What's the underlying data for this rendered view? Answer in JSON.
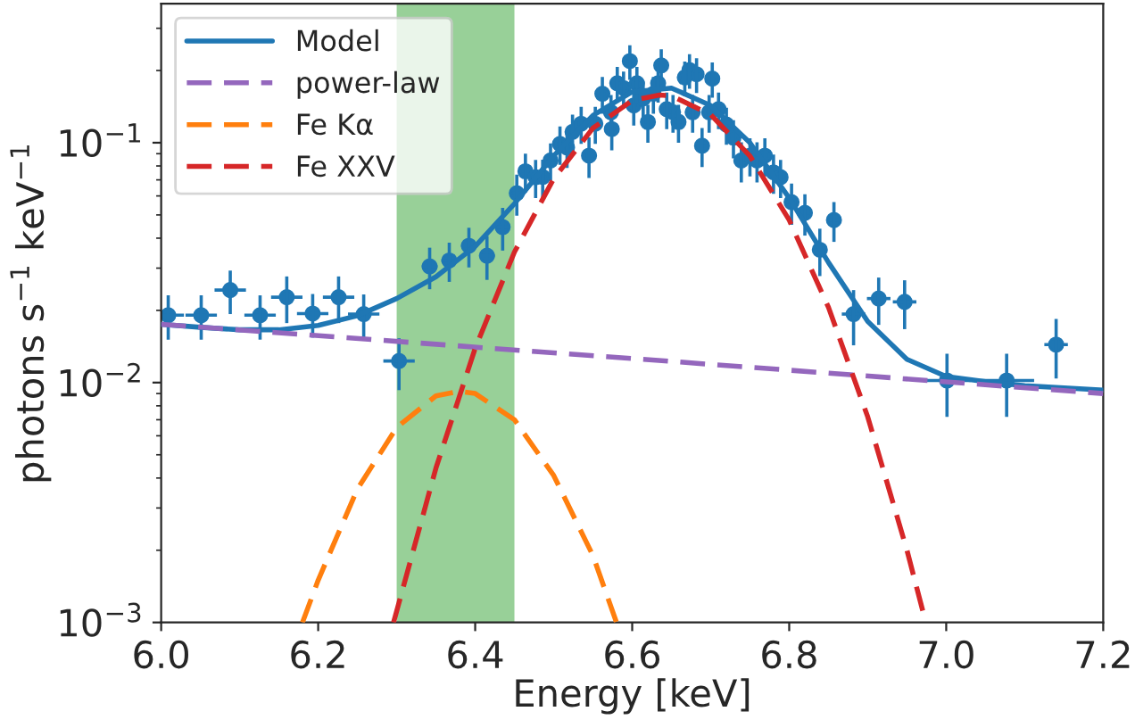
{
  "chart_data": {
    "type": "line",
    "xlabel": "Energy [keV]",
    "ylabel": "photons s$^{−1}$ keV$^{−1}$",
    "log": "y",
    "xlim": [
      6.0,
      7.2
    ],
    "ylim": [
      0.001,
      0.38
    ],
    "xticks": [
      {
        "value": 6.0,
        "label": "6.0"
      },
      {
        "value": 6.2,
        "label": "6.2"
      },
      {
        "value": 6.4,
        "label": "6.4"
      },
      {
        "value": 6.6,
        "label": "6.6"
      },
      {
        "value": 6.8,
        "label": "6.8"
      },
      {
        "value": 7.0,
        "label": "7.0"
      },
      {
        "value": 7.2,
        "label": "7.2"
      }
    ],
    "yticks": [
      {
        "value": 0.001,
        "label": "10$^{−3}$"
      },
      {
        "value": 0.01,
        "label": "10$^{−2}$"
      },
      {
        "value": 0.1,
        "label": "10$^{−1}$"
      }
    ],
    "grid": false,
    "legend": "top left",
    "bands": [
      {
        "axis": "x",
        "from": 6.3,
        "to": 6.45,
        "color": "#98d098"
      }
    ],
    "series": [
      {
        "type": "scatter",
        "color": "#1f77b4",
        "marker": "circle",
        "x": [
          6.009,
          6.051,
          6.088,
          6.126,
          6.16,
          6.193,
          6.226,
          6.258,
          6.303,
          6.342,
          6.367,
          6.392,
          6.415,
          6.435,
          6.453,
          6.464,
          6.477,
          6.486,
          6.496,
          6.508,
          6.517,
          6.524,
          6.535,
          6.545,
          6.553,
          6.562,
          6.573,
          6.574,
          6.581,
          6.589,
          6.597,
          6.602,
          6.606,
          6.614,
          6.62,
          6.627,
          6.633,
          6.637,
          6.644,
          6.652,
          6.659,
          6.667,
          6.673,
          6.677,
          6.682,
          6.689,
          6.698,
          6.702,
          6.71,
          6.72,
          6.729,
          6.739,
          6.75,
          6.759,
          6.769,
          6.78,
          6.789,
          6.803,
          6.82,
          6.839,
          6.857,
          6.882,
          6.914,
          6.947,
          7.001,
          7.077,
          7.14
        ],
        "values": [
          0.0191,
          0.0191,
          0.0243,
          0.0191,
          0.0227,
          0.0194,
          0.0227,
          0.0193,
          0.0123,
          0.0305,
          0.0323,
          0.0372,
          0.0338,
          0.0445,
          0.0616,
          0.076,
          0.0718,
          0.072,
          0.0843,
          0.0988,
          0.0955,
          0.111,
          0.12,
          0.0883,
          0.12,
          0.16,
          0.134,
          0.114,
          0.177,
          0.169,
          0.219,
          0.143,
          0.177,
          0.153,
          0.122,
          0.16,
          0.177,
          0.21,
          0.138,
          0.134,
          0.122,
          0.187,
          0.201,
          0.134,
          0.193,
          0.0971,
          0.134,
          0.185,
          0.138,
          0.119,
          0.105,
          0.0843,
          0.0883,
          0.0843,
          0.0883,
          0.0752,
          0.0718,
          0.0565,
          0.051,
          0.0358,
          0.0476,
          0.0193,
          0.0224,
          0.0217,
          0.0102,
          0.0102,
          0.0144
        ],
        "errors": [
          0.004,
          0.004,
          0.005,
          0.004,
          0.005,
          0.004,
          0.005,
          0.004,
          0.003,
          0.006,
          0.006,
          0.007,
          0.007,
          0.009,
          0.012,
          0.014,
          0.013,
          0.013,
          0.015,
          0.018,
          0.017,
          0.02,
          0.021,
          0.017,
          0.021,
          0.028,
          0.024,
          0.021,
          0.03,
          0.029,
          0.036,
          0.025,
          0.03,
          0.027,
          0.022,
          0.028,
          0.03,
          0.035,
          0.024,
          0.024,
          0.022,
          0.031,
          0.033,
          0.024,
          0.032,
          0.018,
          0.024,
          0.031,
          0.024,
          0.021,
          0.019,
          0.016,
          0.016,
          0.016,
          0.016,
          0.014,
          0.013,
          0.011,
          0.01,
          0.008,
          0.009,
          0.005,
          0.005,
          0.005,
          0.003,
          0.003,
          0.004
        ],
        "xerrors": [
          0.02,
          0.02,
          0.02,
          0.02,
          0.02,
          0.02,
          0.02,
          0.02,
          0.02,
          0.01,
          0.01,
          0.01,
          0.01,
          0.008,
          0.005,
          0.005,
          0.005,
          0.005,
          0.005,
          0.004,
          0.004,
          0.004,
          0.004,
          0.004,
          0.004,
          0.004,
          0.004,
          0.004,
          0.004,
          0.004,
          0.004,
          0.004,
          0.004,
          0.004,
          0.004,
          0.004,
          0.004,
          0.004,
          0.004,
          0.004,
          0.004,
          0.004,
          0.004,
          0.004,
          0.004,
          0.004,
          0.004,
          0.004,
          0.004,
          0.004,
          0.004,
          0.004,
          0.004,
          0.004,
          0.004,
          0.005,
          0.005,
          0.006,
          0.006,
          0.008,
          0.008,
          0.015,
          0.015,
          0.015,
          0.03,
          0.035,
          0.015
        ]
      },
      {
        "name": "Model",
        "color": "#1f77b4",
        "line_style": "solid",
        "x": [
          6.0,
          6.05,
          6.1,
          6.15,
          6.2,
          6.25,
          6.3,
          6.35,
          6.4,
          6.45,
          6.5,
          6.55,
          6.6,
          6.65,
          6.7,
          6.75,
          6.8,
          6.85,
          6.9,
          6.95,
          7.0,
          7.05,
          7.1,
          7.15,
          7.2
        ],
        "values": [
          0.0175,
          0.017,
          0.0166,
          0.0166,
          0.0173,
          0.019,
          0.0224,
          0.0276,
          0.037,
          0.0557,
          0.0882,
          0.13,
          0.163,
          0.169,
          0.143,
          0.0999,
          0.0589,
          0.0317,
          0.018,
          0.0125,
          0.0106,
          0.0101,
          0.0097,
          0.0095,
          0.0093
        ]
      },
      {
        "name": "power-law",
        "color": "#9467bd",
        "line_style": "dashed",
        "x": [
          6.0,
          6.6,
          7.2
        ],
        "values": [
          0.0175,
          0.0126,
          0.009
        ]
      },
      {
        "name": "Fe Kα",
        "color": "#ff7f0e",
        "line_style": "dashed",
        "x": [
          6.18,
          6.2,
          6.25,
          6.3,
          6.35,
          6.38,
          6.4,
          6.45,
          6.5,
          6.55,
          6.58
        ],
        "values": [
          0.001,
          0.0015,
          0.0036,
          0.0065,
          0.0088,
          0.0092,
          0.009,
          0.007,
          0.0041,
          0.0019,
          0.001
        ]
      },
      {
        "name": "Fe XXV",
        "color": "#d62728",
        "line_style": "dashed",
        "x": [
          6.296,
          6.35,
          6.4,
          6.45,
          6.5,
          6.55,
          6.6,
          6.635,
          6.65,
          6.7,
          6.75,
          6.8,
          6.85,
          6.9,
          6.95,
          6.974
        ],
        "values": [
          0.001,
          0.0044,
          0.0139,
          0.035,
          0.0708,
          0.115,
          0.15,
          0.158,
          0.157,
          0.131,
          0.088,
          0.0476,
          0.0206,
          0.0072,
          0.002,
          0.001
        ]
      }
    ]
  }
}
